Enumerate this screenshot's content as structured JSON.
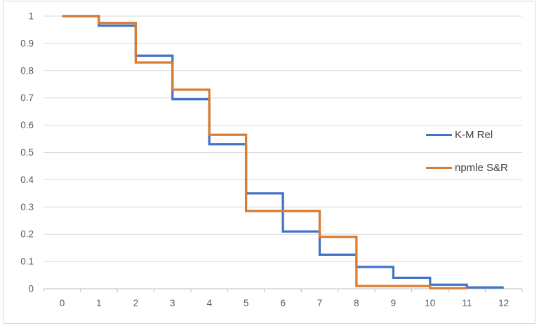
{
  "chart_data": {
    "type": "line",
    "subtype": "step-survival",
    "title": "",
    "xlabel": "",
    "ylabel": "",
    "xlim": [
      -0.5,
      12.5
    ],
    "ylim": [
      0,
      1
    ],
    "grid": "horizontal",
    "legend_position": "right",
    "x_axis": {
      "labels": [
        "0",
        "1",
        "2",
        "3",
        "4",
        "5",
        "6",
        "7",
        "8",
        "9",
        "10",
        "11",
        "12"
      ],
      "values": [
        0,
        1,
        2,
        3,
        4,
        5,
        6,
        7,
        8,
        9,
        10,
        11,
        12
      ]
    },
    "y_axis": {
      "labels": [
        "1",
        "0.9",
        "0.8",
        "0.7",
        "0.6",
        "0.5",
        "0.4",
        "0.3",
        "0.2",
        "0.1",
        "0"
      ],
      "values": [
        1,
        0.9,
        0.8,
        0.7,
        0.6,
        0.5,
        0.4,
        0.3,
        0.2,
        0.1,
        0
      ]
    },
    "series": [
      {
        "name": "K-M Rel",
        "color": "#4472C4",
        "points": [
          [
            0,
            1
          ],
          [
            1,
            1
          ],
          [
            1,
            0.965
          ],
          [
            2,
            0.965
          ],
          [
            2,
            0.855
          ],
          [
            3,
            0.855
          ],
          [
            3,
            0.695
          ],
          [
            4,
            0.695
          ],
          [
            4,
            0.53
          ],
          [
            5,
            0.53
          ],
          [
            5,
            0.35
          ],
          [
            6,
            0.35
          ],
          [
            6,
            0.21
          ],
          [
            7,
            0.21
          ],
          [
            7,
            0.125
          ],
          [
            8,
            0.125
          ],
          [
            8,
            0.08
          ],
          [
            9,
            0.08
          ],
          [
            9,
            0.04
          ],
          [
            10,
            0.04
          ],
          [
            10,
            0.015
          ],
          [
            11,
            0.015
          ],
          [
            11,
            0.005
          ],
          [
            12,
            0.005
          ]
        ]
      },
      {
        "name": "npmle S&R",
        "color": "#D97B31",
        "points": [
          [
            0,
            1
          ],
          [
            1,
            1
          ],
          [
            1,
            0.975
          ],
          [
            2,
            0.975
          ],
          [
            2,
            0.83
          ],
          [
            3,
            0.83
          ],
          [
            3,
            0.73
          ],
          [
            4,
            0.73
          ],
          [
            4,
            0.565
          ],
          [
            5,
            0.565
          ],
          [
            5,
            0.285
          ],
          [
            7,
            0.285
          ],
          [
            7,
            0.19
          ],
          [
            8,
            0.19
          ],
          [
            8,
            0.01
          ],
          [
            10,
            0.01
          ],
          [
            10,
            0.002
          ],
          [
            11,
            0.002
          ]
        ]
      }
    ],
    "colors": {
      "grid": "#d9d9d9",
      "axis": "#bfbfbf",
      "tick": "#bfbfbf",
      "axis_text": "#595959",
      "legend_text": "#404040",
      "border": "#d9d9d9",
      "background": "#ffffff"
    }
  }
}
